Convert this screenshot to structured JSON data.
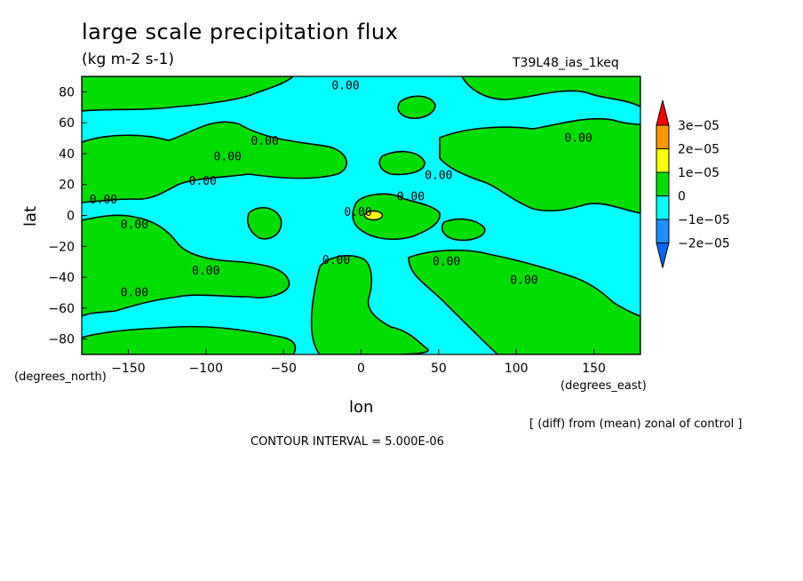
{
  "chart_data": {
    "type": "heatmap",
    "title": "large scale precipitation flux",
    "units": "(kg m-2 s-1)",
    "run_label": "T39L48_ias_1keq",
    "xlabel": "lon",
    "ylabel": "lat",
    "x_units": "(degrees_east)",
    "y_units": "(degrees_north)",
    "xlim": [
      -180,
      180
    ],
    "ylim": [
      -90,
      90
    ],
    "x_ticks": [
      -150,
      -100,
      -50,
      0,
      50,
      100,
      150
    ],
    "y_ticks": [
      80,
      60,
      40,
      20,
      0,
      -20,
      -40,
      -60,
      -80
    ],
    "x_tick_labels": [
      "−150",
      "−100",
      "−50",
      "0",
      "50",
      "100",
      "150"
    ],
    "y_tick_labels": [
      "80",
      "60",
      "40",
      "20",
      "0",
      "−20",
      "−40",
      "−60",
      "−80"
    ],
    "contour_label": "0.00",
    "colorbar": {
      "levels": [
        -2e-05,
        -1e-05,
        0,
        1e-05,
        2e-05,
        3e-05
      ],
      "labels": [
        "−2e−05",
        "−1e−05",
        "0",
        "1e−05",
        "2e−05",
        "3e−05"
      ],
      "colors": [
        "#1e90ff",
        "#00ffff",
        "#00dd00",
        "#ffff00",
        "#ff9900",
        "#ff0000"
      ],
      "under_color": "#0066ff",
      "over_color": "#ff0000"
    },
    "features": [
      {
        "type": "max",
        "lon": 8,
        "lat": 0,
        "value": 1e-05
      }
    ]
  },
  "footer": {
    "operation": "[ (diff) from (mean) zonal of control ]",
    "contour_interval": "CONTOUR INTERVAL = 5.000E-06"
  }
}
